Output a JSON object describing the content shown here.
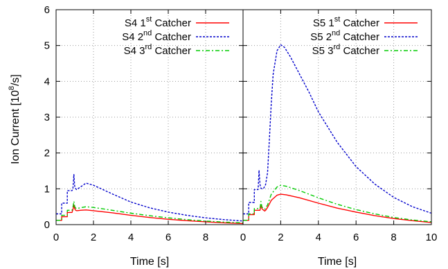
{
  "chart_data": {
    "type": "line",
    "ylabel": "Ion Current [10",
    "ylabel_sup": "8",
    "ylabel_tail": "/s]",
    "ylim": [
      0,
      6
    ],
    "yticks": [
      "0",
      "1",
      "2",
      "3",
      "4",
      "5",
      "6"
    ],
    "grid": true,
    "colors": {
      "first": "#ff0000",
      "second": "#0000cc",
      "third": "#00cc00"
    },
    "panels": [
      {
        "name": "S4",
        "xlabel": "Time [s]",
        "xlim": [
          0,
          10
        ],
        "xticks": [
          "0",
          "2",
          "4",
          "6",
          "8"
        ],
        "legend_position": "top-right",
        "series": [
          {
            "key": "first",
            "name_pre": "S4 1",
            "name_sup": "st",
            "name_post": " Catcher",
            "x": [
              0,
              0.3,
              0.3,
              0.6,
              0.6,
              0.85,
              0.9,
              0.95,
              1.0,
              1.05,
              1.1,
              1.3,
              1.6,
              2.0,
              3.0,
              4.0,
              5.0,
              6.0,
              7.0,
              8.0,
              9.0,
              10.0
            ],
            "y": [
              0.12,
              0.12,
              0.22,
              0.22,
              0.34,
              0.34,
              0.42,
              0.55,
              0.44,
              0.4,
              0.39,
              0.4,
              0.41,
              0.39,
              0.33,
              0.26,
              0.2,
              0.15,
              0.11,
              0.08,
              0.05,
              0.03
            ]
          },
          {
            "key": "second",
            "name_pre": "S4 2",
            "name_sup": "nd",
            "name_post": " Catcher",
            "x": [
              0,
              0.3,
              0.3,
              0.6,
              0.6,
              0.85,
              0.9,
              0.95,
              1.0,
              1.05,
              1.1,
              1.3,
              1.6,
              2.0,
              3.0,
              4.0,
              5.0,
              6.0,
              7.0,
              8.0,
              9.0,
              10.0
            ],
            "y": [
              0.3,
              0.3,
              0.6,
              0.6,
              0.95,
              0.95,
              1.0,
              1.4,
              1.05,
              1.0,
              0.98,
              1.05,
              1.16,
              1.1,
              0.86,
              0.63,
              0.47,
              0.35,
              0.26,
              0.19,
              0.14,
              0.1
            ]
          },
          {
            "key": "third",
            "name_pre": "S4 3",
            "name_sup": "rd",
            "name_post": " Catcher",
            "x": [
              0,
              0.3,
              0.3,
              0.6,
              0.6,
              0.85,
              0.9,
              0.95,
              1.0,
              1.05,
              1.1,
              1.3,
              1.6,
              2.0,
              3.0,
              4.0,
              5.0,
              6.0,
              7.0,
              8.0,
              9.0,
              10.0
            ],
            "y": [
              0.12,
              0.12,
              0.26,
              0.26,
              0.4,
              0.4,
              0.48,
              0.65,
              0.5,
              0.46,
              0.45,
              0.47,
              0.5,
              0.48,
              0.4,
              0.32,
              0.25,
              0.19,
              0.14,
              0.1,
              0.07,
              0.05
            ]
          }
        ]
      },
      {
        "name": "S5",
        "xlabel": "Time [s]",
        "xlim": [
          0,
          10
        ],
        "xticks": [
          "0",
          "2",
          "4",
          "6",
          "8",
          "10"
        ],
        "legend_position": "top-right",
        "series": [
          {
            "key": "first",
            "name_pre": "S5 1",
            "name_sup": "st",
            "name_post": " Catcher",
            "x": [
              0,
              0.3,
              0.3,
              0.6,
              0.6,
              0.9,
              0.95,
              1.0,
              1.05,
              1.1,
              1.15,
              1.2,
              1.3,
              1.5,
              1.8,
              2.0,
              2.3,
              3.0,
              4.0,
              5.0,
              6.0,
              7.0,
              8.0,
              9.0,
              10.0
            ],
            "y": [
              0.12,
              0.12,
              0.28,
              0.28,
              0.4,
              0.4,
              0.55,
              0.45,
              0.42,
              0.4,
              0.38,
              0.4,
              0.48,
              0.68,
              0.82,
              0.85,
              0.83,
              0.75,
              0.6,
              0.46,
              0.35,
              0.25,
              0.17,
              0.11,
              0.06
            ]
          },
          {
            "key": "second",
            "name_pre": "S5 2",
            "name_sup": "nd",
            "name_post": " Catcher",
            "x": [
              0,
              0.3,
              0.3,
              0.6,
              0.6,
              0.8,
              0.85,
              0.9,
              0.95,
              1.0,
              1.05,
              1.1,
              1.2,
              1.3,
              1.4,
              1.5,
              1.6,
              1.8,
              2.0,
              2.2,
              2.5,
              3.0,
              3.5,
              4.0,
              5.0,
              6.0,
              7.0,
              8.0,
              9.0,
              10.0
            ],
            "y": [
              0.3,
              0.3,
              0.62,
              0.62,
              0.98,
              0.98,
              1.52,
              1.12,
              1.02,
              1.0,
              1.0,
              1.02,
              1.12,
              1.45,
              2.4,
              3.4,
              4.2,
              4.85,
              5.02,
              4.95,
              4.7,
              4.2,
              3.7,
              3.15,
              2.3,
              1.62,
              1.13,
              0.76,
              0.5,
              0.32
            ]
          },
          {
            "key": "third",
            "name_pre": "S5 3",
            "name_sup": "rd",
            "name_post": " Catcher",
            "x": [
              0,
              0.3,
              0.3,
              0.6,
              0.6,
              0.9,
              0.95,
              1.0,
              1.05,
              1.1,
              1.15,
              1.2,
              1.3,
              1.5,
              1.8,
              2.0,
              2.3,
              3.0,
              4.0,
              5.0,
              6.0,
              7.0,
              8.0,
              9.0,
              10.0
            ],
            "y": [
              0.12,
              0.12,
              0.3,
              0.3,
              0.45,
              0.45,
              0.65,
              0.5,
              0.46,
              0.44,
              0.43,
              0.46,
              0.55,
              0.85,
              1.05,
              1.1,
              1.07,
              0.95,
              0.75,
              0.57,
              0.42,
              0.3,
              0.2,
              0.13,
              0.08
            ]
          }
        ]
      }
    ]
  }
}
